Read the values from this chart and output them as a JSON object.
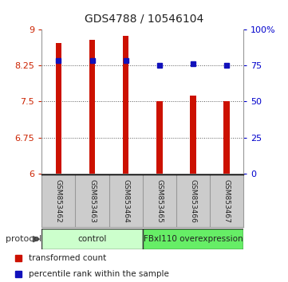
{
  "title": "GDS4788 / 10546104",
  "samples": [
    "GSM853462",
    "GSM853463",
    "GSM853464",
    "GSM853465",
    "GSM853466",
    "GSM853467"
  ],
  "bar_heights": [
    8.72,
    8.78,
    8.87,
    7.5,
    7.62,
    7.51
  ],
  "blue_y": [
    8.36,
    8.36,
    8.36,
    8.25,
    8.29,
    8.25
  ],
  "ylim_left": [
    6.0,
    9.0
  ],
  "yticks_left": [
    6.0,
    6.75,
    7.5,
    8.25,
    9.0
  ],
  "ytick_labels_left": [
    "6",
    "6.75",
    "7.5",
    "8.25",
    "9"
  ],
  "yticks_right_vals": [
    0,
    25,
    50,
    75,
    100
  ],
  "ytick_labels_right": [
    "0",
    "25",
    "50",
    "75",
    "100%"
  ],
  "bar_color": "#cc1100",
  "blue_color": "#1111bb",
  "groups": [
    {
      "label": "control",
      "start": 0,
      "end": 3,
      "color": "#ccffcc"
    },
    {
      "label": "FBxl110 overexpression",
      "start": 3,
      "end": 6,
      "color": "#66ee66"
    }
  ],
  "protocol_label": "protocol",
  "legend_items": [
    {
      "color": "#cc1100",
      "label": "transformed count"
    },
    {
      "color": "#1111bb",
      "label": "percentile rank within the sample"
    }
  ],
  "bar_width": 0.18,
  "bg_color": "#ffffff",
  "plot_bg": "#ffffff",
  "label_color_left": "#cc2200",
  "label_color_right": "#0000cc",
  "grid_color": "#555555"
}
